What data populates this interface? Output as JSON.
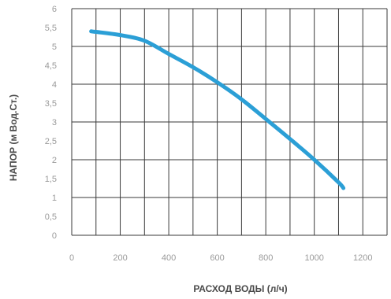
{
  "chart_data": {
    "type": "line",
    "title": "",
    "xlabel": "РАСХОД ВОДЫ (л/ч)",
    "ylabel": "НАПОР (м Вод.Ст.)",
    "xlim": [
      0,
      1300
    ],
    "ylim": [
      0,
      6
    ],
    "x_ticks": [
      0,
      200,
      400,
      600,
      800,
      1000,
      1200
    ],
    "y_ticks": [
      0,
      0.5,
      1,
      1.5,
      2,
      2.5,
      3,
      3.5,
      4,
      4.5,
      5,
      5.5,
      6
    ],
    "x_tick_labels": [
      "0",
      "200",
      "400",
      "600",
      "800",
      "1000",
      "1200"
    ],
    "y_tick_labels": [
      "0",
      "0,5",
      "1",
      "1,5",
      "2",
      "2,5",
      "3",
      "3,5",
      "4",
      "4,5",
      "5",
      "5,5",
      "6"
    ],
    "grid": true,
    "colors": {
      "line": "#2b9fd6",
      "grid": "#3a3a3a",
      "tick": "#9a9a9a",
      "axis_label": "#4a4a4a"
    },
    "series": [
      {
        "x": [
          80,
          200,
          300,
          400,
          500,
          600,
          700,
          800,
          900,
          1000,
          1100,
          1120
        ],
        "y": [
          5.4,
          5.3,
          5.15,
          4.8,
          4.45,
          4.05,
          3.6,
          3.08,
          2.55,
          2.0,
          1.4,
          1.25
        ]
      }
    ]
  }
}
